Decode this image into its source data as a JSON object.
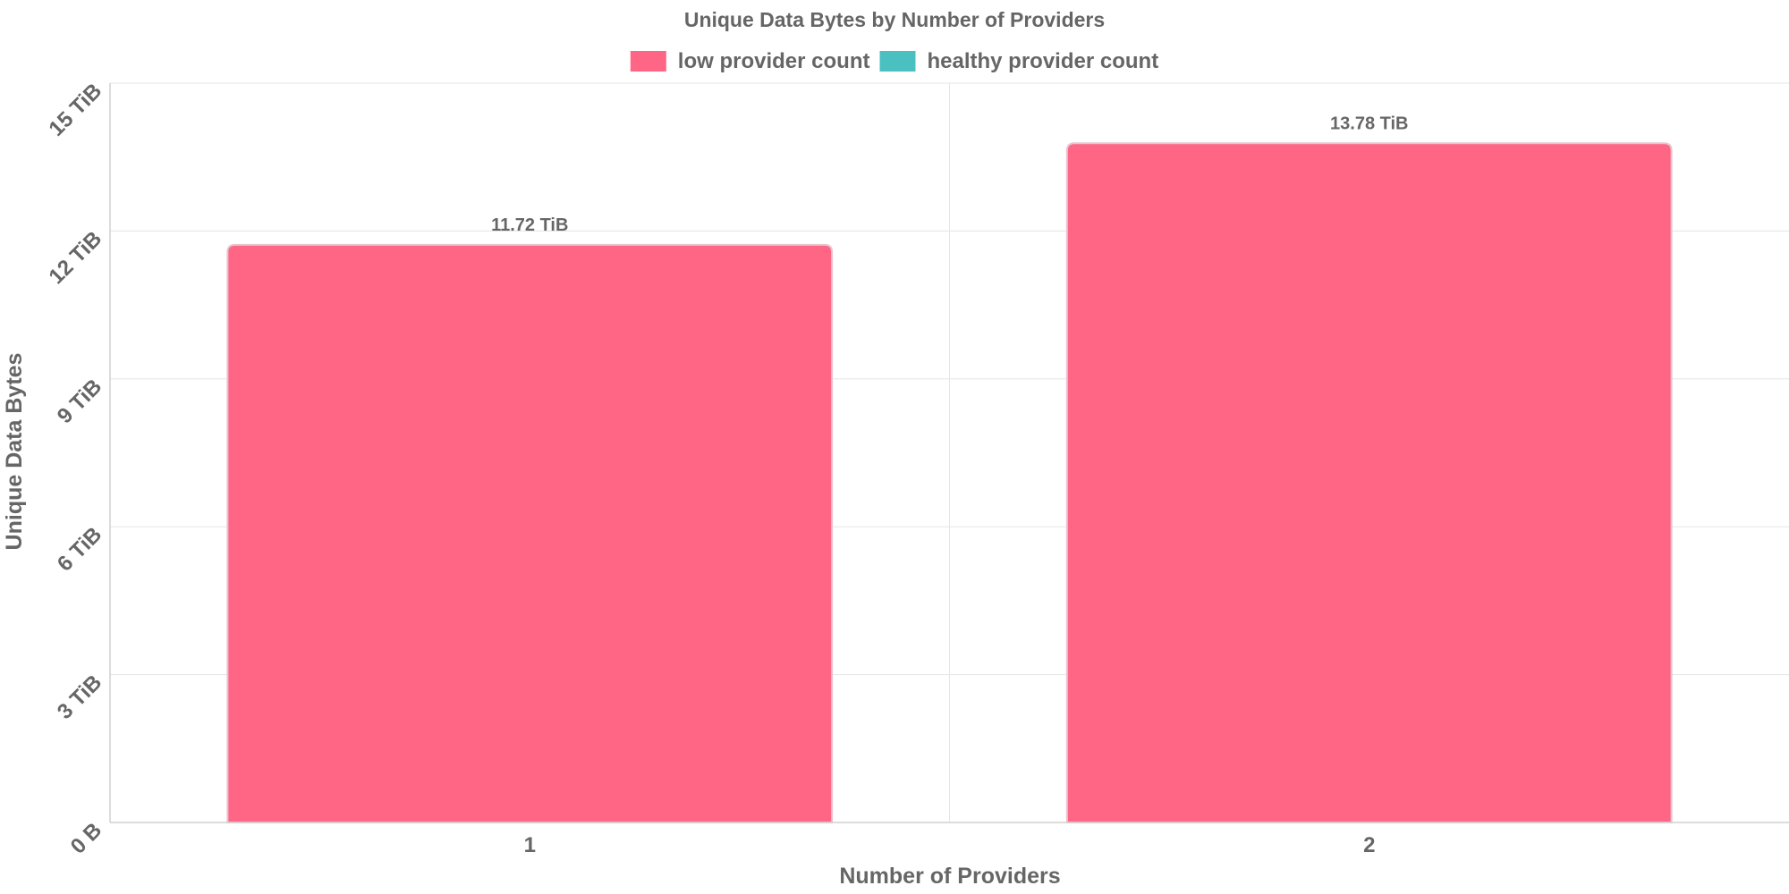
{
  "chart_data": {
    "type": "bar",
    "title": "Unique Data Bytes by Number of Providers",
    "xlabel": "Number of Providers",
    "ylabel": "Unique Data Bytes",
    "categories": [
      "1",
      "2"
    ],
    "series": [
      {
        "name": "low provider count",
        "color": "#ff6584",
        "values": [
          11.72,
          13.78
        ],
        "labels": [
          "11.72 TiB",
          "13.78 TiB"
        ]
      },
      {
        "name": "healthy provider count",
        "color": "#4bc0c0",
        "values": [
          null,
          null
        ],
        "labels": [
          "",
          ""
        ]
      }
    ],
    "ylim": [
      0,
      15
    ],
    "y_unit": "TiB",
    "yticks": [
      {
        "value": 0,
        "label": "0 B"
      },
      {
        "value": 3,
        "label": "3 TiB"
      },
      {
        "value": 6,
        "label": "6 TiB"
      },
      {
        "value": 9,
        "label": "9 TiB"
      },
      {
        "value": 12,
        "label": "12 TiB"
      },
      {
        "value": 15,
        "label": "15 TiB"
      }
    ],
    "grid": true,
    "legend_position": "top-center"
  }
}
